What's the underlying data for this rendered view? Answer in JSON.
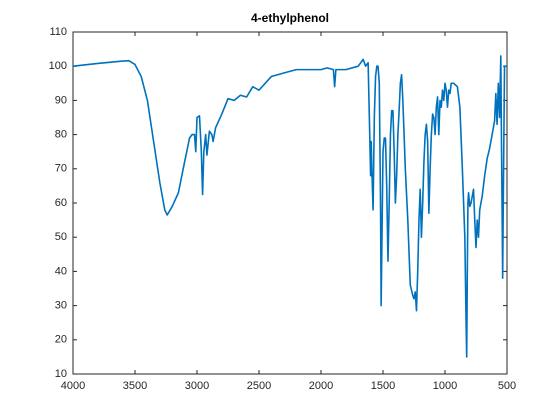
{
  "chart_data": {
    "type": "line",
    "title": "4-ethylphenol",
    "xlim": [
      4000,
      500
    ],
    "xticks": [
      4000,
      3500,
      3000,
      2500,
      2000,
      1500,
      1000,
      500
    ],
    "ylim": [
      10,
      110
    ],
    "yticks": [
      10,
      20,
      30,
      40,
      50,
      60,
      70,
      80,
      90,
      100,
      110
    ],
    "grid": false,
    "series": [
      {
        "color": "#0072bd",
        "x": [
          4000,
          3800,
          3600,
          3550,
          3500,
          3450,
          3400,
          3350,
          3300,
          3260,
          3240,
          3200,
          3150,
          3100,
          3060,
          3040,
          3020,
          3010,
          3000,
          2980,
          2965,
          2955,
          2945,
          2930,
          2920,
          2900,
          2880,
          2870,
          2850,
          2800,
          2750,
          2700,
          2650,
          2600,
          2550,
          2500,
          2450,
          2400,
          2300,
          2200,
          2100,
          2000,
          1950,
          1900,
          1890,
          1880,
          1800,
          1700,
          1660,
          1640,
          1620,
          1610,
          1600,
          1595,
          1590,
          1580,
          1570,
          1560,
          1550,
          1540,
          1530,
          1520,
          1515,
          1510,
          1500,
          1490,
          1480,
          1470,
          1460,
          1450,
          1440,
          1430,
          1420,
          1410,
          1400,
          1390,
          1380,
          1370,
          1360,
          1350,
          1340,
          1330,
          1320,
          1300,
          1280,
          1260,
          1250,
          1240,
          1230,
          1220,
          1210,
          1200,
          1190,
          1180,
          1170,
          1160,
          1150,
          1140,
          1130,
          1120,
          1110,
          1100,
          1090,
          1080,
          1070,
          1060,
          1050,
          1040,
          1030,
          1020,
          1010,
          1000,
          990,
          980,
          970,
          960,
          950,
          930,
          900,
          880,
          860,
          840,
          830,
          825,
          820,
          815,
          810,
          800,
          790,
          780,
          770,
          760,
          750,
          740,
          730,
          720,
          700,
          680,
          660,
          640,
          620,
          600,
          590,
          580,
          570,
          560,
          550,
          545,
          540,
          535,
          530,
          520,
          510,
          500
        ],
        "values": [
          100,
          100.8,
          101.5,
          101.6,
          100.5,
          97,
          90,
          78,
          66,
          58,
          56.5,
          59,
          63,
          72,
          79,
          80,
          80,
          75,
          85,
          85.5,
          75,
          62.5,
          75,
          80,
          74,
          81,
          80,
          78,
          82,
          86,
          90.5,
          90,
          91.5,
          91,
          94,
          93,
          95,
          97,
          98,
          99,
          99,
          99,
          99.5,
          99,
          94,
          99,
          99,
          100,
          102,
          100,
          101,
          85,
          68,
          78,
          70,
          58,
          85,
          97,
          100,
          100,
          95,
          60,
          30,
          45,
          75,
          79,
          79,
          65,
          43,
          60,
          80,
          87,
          87,
          75,
          60,
          68,
          80,
          87,
          95,
          97.5,
          90,
          80,
          70,
          55,
          36,
          33,
          32,
          34,
          28.5,
          40,
          55,
          64,
          50,
          60,
          72,
          80,
          83,
          78,
          57,
          70,
          80,
          86,
          85,
          80,
          88,
          91,
          80,
          90,
          88,
          93,
          90,
          95,
          93,
          88,
          93,
          92,
          95,
          95,
          94,
          88,
          70,
          50,
          25,
          15,
          40,
          60,
          63,
          59,
          60,
          62,
          64,
          55,
          47,
          55,
          50,
          58,
          62,
          68,
          73,
          76,
          80,
          84,
          92,
          83,
          95,
          85,
          103,
          80,
          60,
          38,
          60,
          100,
          100,
          100
        ]
      }
    ]
  }
}
